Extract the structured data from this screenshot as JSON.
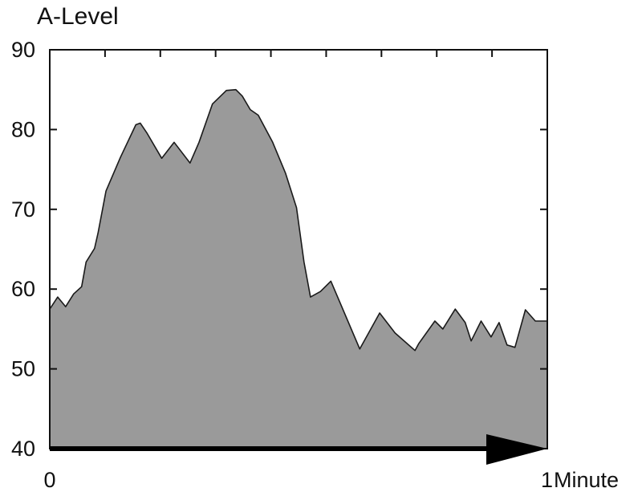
{
  "chart_data": {
    "type": "area",
    "ylabel": "A-Level",
    "xlabel": "Minute",
    "ylim": [
      40,
      90
    ],
    "xlim": [
      0,
      1
    ],
    "y_ticks": [
      40,
      50,
      60,
      70,
      80,
      90
    ],
    "x_ticks": [
      0,
      1
    ],
    "x_tick_labels": [
      "0",
      "1"
    ],
    "grid": false,
    "colors": {
      "fill": "#9a9a9a",
      "line": "#1a1a1a",
      "axis": "#111111",
      "arrow": "#000000"
    },
    "series": [
      {
        "x": [
          0.0,
          0.016,
          0.032,
          0.048,
          0.064,
          0.073,
          0.09,
          0.097,
          0.113,
          0.142,
          0.173,
          0.182,
          0.195,
          0.225,
          0.25,
          0.282,
          0.3,
          0.327,
          0.355,
          0.374,
          0.387,
          0.403,
          0.419,
          0.448,
          0.474,
          0.496,
          0.511,
          0.524,
          0.544,
          0.565,
          0.606,
          0.623,
          0.663,
          0.694,
          0.734,
          0.742,
          0.774,
          0.79,
          0.815,
          0.835,
          0.847,
          0.867,
          0.887,
          0.903,
          0.919,
          0.935,
          0.956,
          0.976,
          1.0
        ],
        "y": [
          57.5,
          59.0,
          57.8,
          59.4,
          60.3,
          63.4,
          65.1,
          67.0,
          72.3,
          76.5,
          80.6,
          80.8,
          79.6,
          76.4,
          78.4,
          75.8,
          78.4,
          83.2,
          84.9,
          85.0,
          84.2,
          82.5,
          81.8,
          78.4,
          74.5,
          70.2,
          63.4,
          59.0,
          59.7,
          61.0,
          55.0,
          52.5,
          57.0,
          54.5,
          52.3,
          53.2,
          56.0,
          55.0,
          57.5,
          55.8,
          53.5,
          56.0,
          54.0,
          55.8,
          53.0,
          52.7,
          57.4,
          56.0,
          56.0
        ]
      }
    ]
  }
}
